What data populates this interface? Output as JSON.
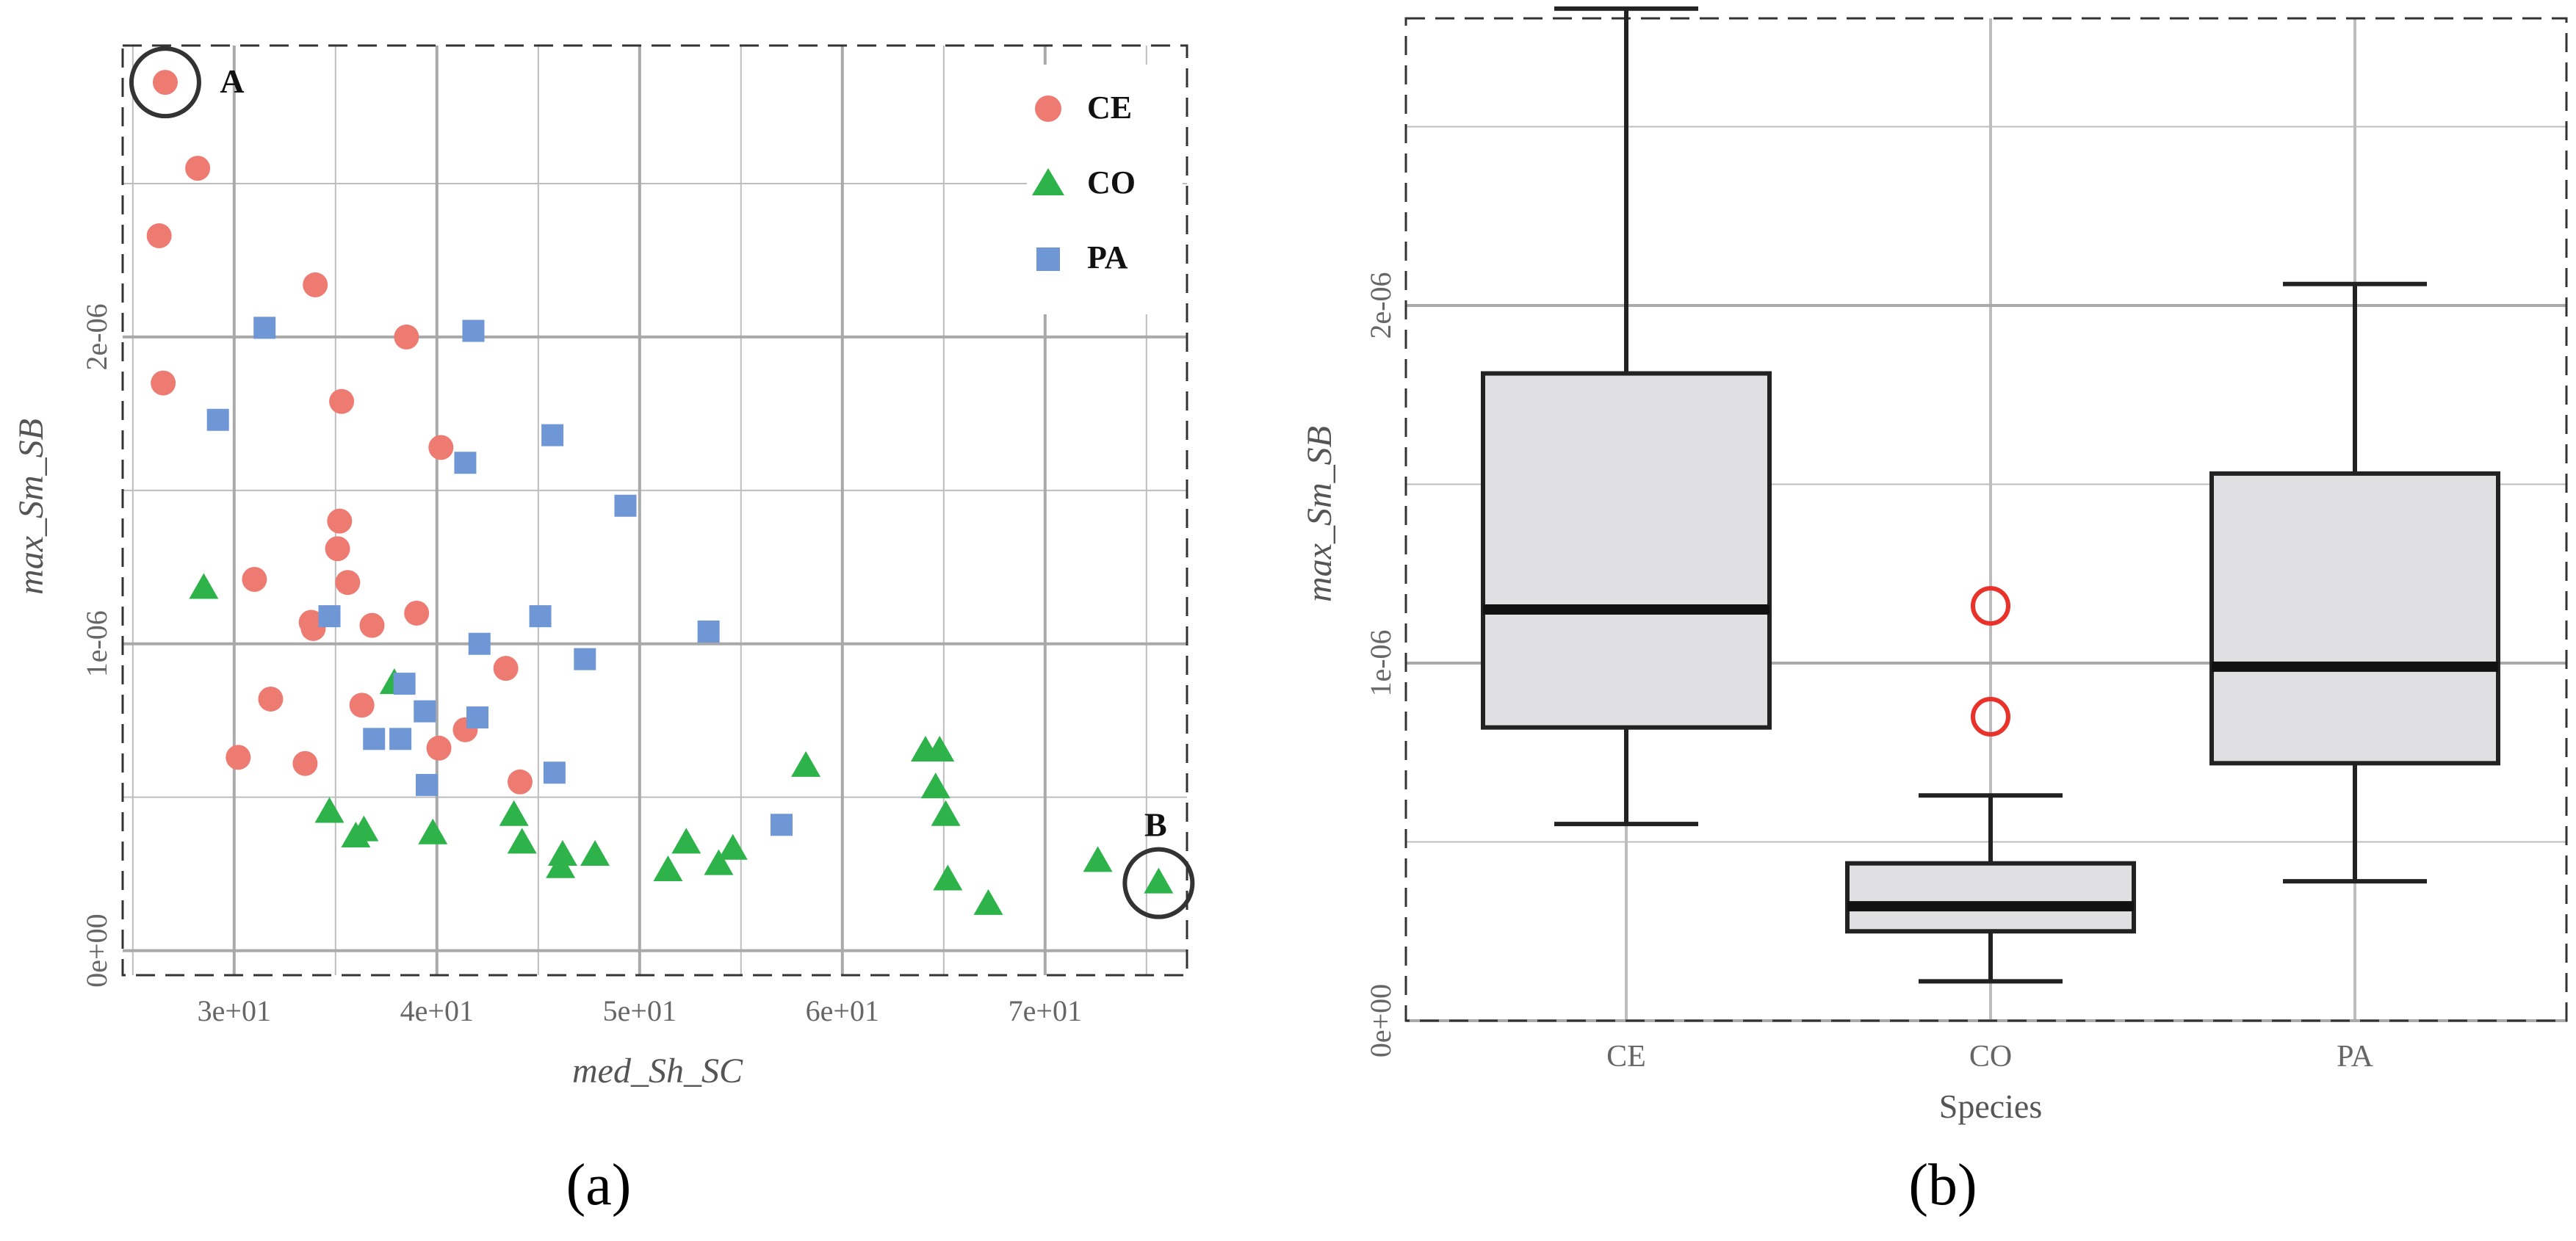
{
  "colors": {
    "CE": "#EE7B72",
    "CO": "#2DB34A",
    "PA": "#6F97D6",
    "grid": "#bdbdbd",
    "box_fill": "#e0e0e2",
    "outlier": "#e8322a",
    "frame": "#333333"
  },
  "chart_data": [
    {
      "type": "scatter",
      "panel_label": "(a)",
      "xlabel": "med_Sh_SC",
      "ylabel": "max_Sm_SB",
      "xlim": [
        24.5,
        77
      ],
      "ylim": [
        -8e-08,
        2.95e-06
      ],
      "x_ticks": [
        30,
        40,
        50,
        60,
        70
      ],
      "x_tick_labels": [
        "3e+01",
        "4e+01",
        "5e+01",
        "6e+01",
        "7e+01"
      ],
      "y_ticks": [
        0,
        1e-06,
        2e-06
      ],
      "y_tick_labels": [
        "0e+00",
        "1e-06",
        "2e-06"
      ],
      "legend": [
        {
          "name": "CE",
          "marker": "circle"
        },
        {
          "name": "CO",
          "marker": "triangle"
        },
        {
          "name": "PA",
          "marker": "square"
        }
      ],
      "annotations": [
        {
          "label": "A",
          "x": 26.6,
          "y": 2.83e-06
        },
        {
          "label": "B",
          "x": 75.6,
          "y": 2.2e-07
        }
      ],
      "series": [
        {
          "name": "CE",
          "marker": "circle",
          "points": [
            [
              26.6,
              2.83e-06
            ],
            [
              28.2,
              2.55e-06
            ],
            [
              26.3,
              2.33e-06
            ],
            [
              34.0,
              2.17e-06
            ],
            [
              38.5,
              2e-06
            ],
            [
              26.5,
              1.85e-06
            ],
            [
              35.3,
              1.79e-06
            ],
            [
              40.2,
              1.64e-06
            ],
            [
              35.2,
              1.4e-06
            ],
            [
              35.1,
              1.31e-06
            ],
            [
              31.0,
              1.21e-06
            ],
            [
              35.6,
              1.2e-06
            ],
            [
              39.0,
              1.1e-06
            ],
            [
              33.8,
              1.07e-06
            ],
            [
              33.9,
              1.05e-06
            ],
            [
              36.8,
              1.06e-06
            ],
            [
              43.4,
              9.2e-07
            ],
            [
              31.8,
              8.2e-07
            ],
            [
              36.3,
              8e-07
            ],
            [
              41.4,
              7.2e-07
            ],
            [
              40.1,
              6.6e-07
            ],
            [
              30.2,
              6.3e-07
            ],
            [
              33.5,
              6.1e-07
            ],
            [
              44.1,
              5.5e-07
            ]
          ]
        },
        {
          "name": "CO",
          "marker": "triangle",
          "points": [
            [
              28.5,
              1.18e-06
            ],
            [
              37.9,
              8.7e-07
            ],
            [
              58.2,
              6e-07
            ],
            [
              64.1,
              6.5e-07
            ],
            [
              64.8,
              6.5e-07
            ],
            [
              64.6,
              5.3e-07
            ],
            [
              34.7,
              4.5e-07
            ],
            [
              65.1,
              4.4e-07
            ],
            [
              43.8,
              4.4e-07
            ],
            [
              36.4,
              3.9e-07
            ],
            [
              39.8,
              3.8e-07
            ],
            [
              36.0,
              3.7e-07
            ],
            [
              52.3,
              3.5e-07
            ],
            [
              44.2,
              3.5e-07
            ],
            [
              54.6,
              3.3e-07
            ],
            [
              47.8,
              3.1e-07
            ],
            [
              46.2,
              3.1e-07
            ],
            [
              53.9,
              2.8e-07
            ],
            [
              72.6,
              2.9e-07
            ],
            [
              46.1,
              2.7e-07
            ],
            [
              51.4,
              2.6e-07
            ],
            [
              65.2,
              2.3e-07
            ],
            [
              75.6,
              2.2e-07
            ],
            [
              67.2,
              1.5e-07
            ]
          ]
        },
        {
          "name": "PA",
          "marker": "square",
          "points": [
            [
              31.5,
              2.03e-06
            ],
            [
              41.8,
              2.02e-06
            ],
            [
              29.2,
              1.73e-06
            ],
            [
              45.7,
              1.68e-06
            ],
            [
              41.4,
              1.59e-06
            ],
            [
              49.3,
              1.45e-06
            ],
            [
              34.7,
              1.09e-06
            ],
            [
              45.1,
              1.09e-06
            ],
            [
              53.4,
              1.04e-06
            ],
            [
              42.1,
              1e-06
            ],
            [
              47.3,
              9.5e-07
            ],
            [
              38.4,
              8.7e-07
            ],
            [
              39.4,
              7.8e-07
            ],
            [
              42.0,
              7.6e-07
            ],
            [
              36.9,
              6.9e-07
            ],
            [
              38.2,
              6.9e-07
            ],
            [
              45.8,
              5.8e-07
            ],
            [
              39.5,
              5.4e-07
            ],
            [
              57.0,
              4.1e-07
            ]
          ]
        }
      ]
    },
    {
      "type": "box",
      "panel_label": "(b)",
      "xlabel": "Species",
      "ylabel": "max_Sm_SB",
      "ylim": [
        0,
        2.86e-06
      ],
      "y_ticks": [
        0,
        1e-06,
        2e-06
      ],
      "y_tick_labels": [
        "0e+00",
        "1e-06",
        "2e-06"
      ],
      "categories": [
        "CE",
        "CO",
        "PA"
      ],
      "boxes": [
        {
          "name": "CE",
          "whisker_low": 5.5e-07,
          "q1": 8.2e-07,
          "median": 1.15e-06,
          "q3": 1.81e-06,
          "whisker_high": 2.83e-06,
          "outliers": []
        },
        {
          "name": "CO",
          "whisker_low": 1.1e-07,
          "q1": 2.5e-07,
          "median": 3.2e-07,
          "q3": 4.4e-07,
          "whisker_high": 6.3e-07,
          "outliers": [
            1.16e-06,
            8.5e-07
          ]
        },
        {
          "name": "PA",
          "whisker_low": 3.9e-07,
          "q1": 7.2e-07,
          "median": 9.9e-07,
          "q3": 1.53e-06,
          "whisker_high": 2.06e-06,
          "outliers": []
        }
      ]
    }
  ]
}
